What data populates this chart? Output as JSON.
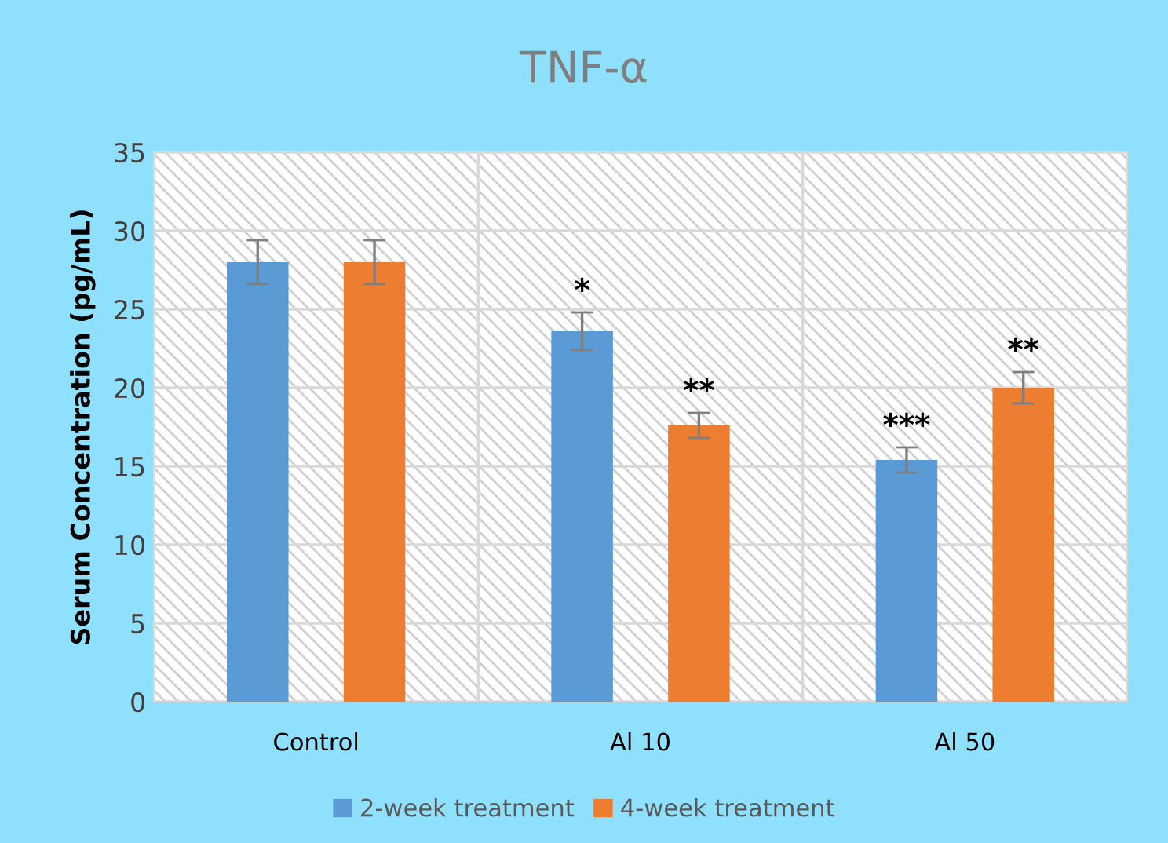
{
  "chart_data": {
    "type": "bar",
    "title": "TNF-α",
    "ylabel": "Serum Concentration (pg/mL)",
    "categories": [
      "Control",
      "Al 10",
      "Al 50"
    ],
    "series": [
      {
        "name": "2-week treatment",
        "color": "#5b9bd5",
        "values": [
          28.0,
          23.6,
          15.4
        ],
        "errors": [
          1.4,
          1.2,
          0.8
        ],
        "value_labels": [
          null,
          "*",
          "***"
        ]
      },
      {
        "name": "4-week treatment",
        "color": "#ed7d31",
        "values": [
          28.0,
          17.6,
          20.0
        ],
        "errors": [
          1.4,
          0.8,
          1.0
        ],
        "value_labels": [
          null,
          "**",
          "**"
        ]
      }
    ],
    "ylim": [
      0,
      35
    ],
    "yticks": [
      0,
      5,
      10,
      15,
      20,
      25,
      30,
      35
    ],
    "grid": true,
    "legend": "bottom"
  }
}
